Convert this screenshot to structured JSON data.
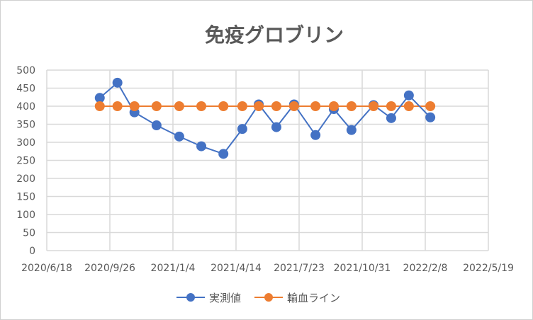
{
  "chart_data": {
    "type": "line",
    "title": "免疫グロブリン",
    "xlabel": "",
    "ylabel": "",
    "ylim": [
      0,
      500
    ],
    "yticks": [
      "0",
      "50",
      "100",
      "150",
      "200",
      "250",
      "300",
      "350",
      "400",
      "450",
      "500"
    ],
    "xlim": [
      "2020-06-18",
      "2022-05-19"
    ],
    "xticks": [
      "2020/6/18",
      "2020/9/26",
      "2021/1/4",
      "2021/4/14",
      "2021/7/23",
      "2021/10/31",
      "2022/2/8",
      "2022/5/19"
    ],
    "grid": true,
    "legend_position": "bottom",
    "x": [
      "2020-09-10",
      "2020-10-08",
      "2020-11-04",
      "2020-12-09",
      "2021-01-14",
      "2021-02-18",
      "2021-03-25",
      "2021-04-24",
      "2021-05-20",
      "2021-06-17",
      "2021-07-15",
      "2021-08-18",
      "2021-09-16",
      "2021-10-14",
      "2021-11-18",
      "2021-12-16",
      "2022-01-13",
      "2022-02-16"
    ],
    "series": [
      {
        "name": "実測値",
        "color": "#4472C4",
        "values": [
          423,
          465,
          383,
          347,
          316,
          289,
          268,
          337,
          405,
          342,
          405,
          320,
          392,
          334,
          403,
          367,
          430,
          369
        ]
      },
      {
        "name": "輸血ライン",
        "color": "#ED7D31",
        "values": [
          400,
          400,
          400,
          400,
          400,
          400,
          400,
          400,
          400,
          400,
          400,
          400,
          400,
          400,
          400,
          400,
          400,
          400
        ]
      }
    ]
  }
}
